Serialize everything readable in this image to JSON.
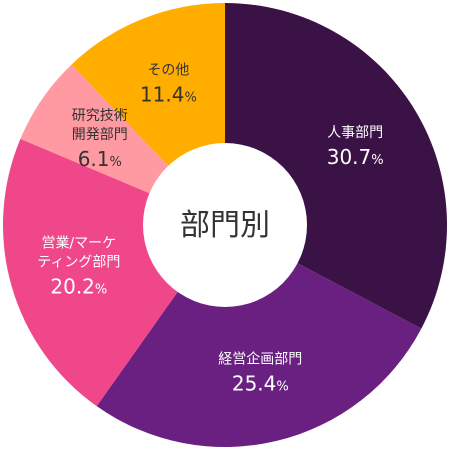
{
  "chart_data": {
    "type": "pie",
    "center_title": "部門別",
    "unit": "%",
    "slices": [
      {
        "label_lines": [
          "人事部門"
        ],
        "value": 30.7,
        "value_text": "30.7",
        "color": "#3b1246",
        "text_color": "#ffffff"
      },
      {
        "label_lines": [
          "経営企画部門"
        ],
        "value": 25.4,
        "value_text": "25.4",
        "color": "#6a2080",
        "text_color": "#ffffff"
      },
      {
        "label_lines": [
          "営業/マーケ",
          "ティング部門"
        ],
        "value": 20.2,
        "value_text": "20.2",
        "color": "#f0478a",
        "text_color": "#ffffff"
      },
      {
        "label_lines": [
          "研究技術",
          "開発部門"
        ],
        "value": 6.1,
        "value_text": "6.1",
        "color": "#ff9aa2",
        "text_color": "#333333"
      },
      {
        "label_lines": [
          "その他"
        ],
        "value": 11.4,
        "value_text": "11.4",
        "color": "#ffae00",
        "text_color": "#333333"
      }
    ]
  }
}
